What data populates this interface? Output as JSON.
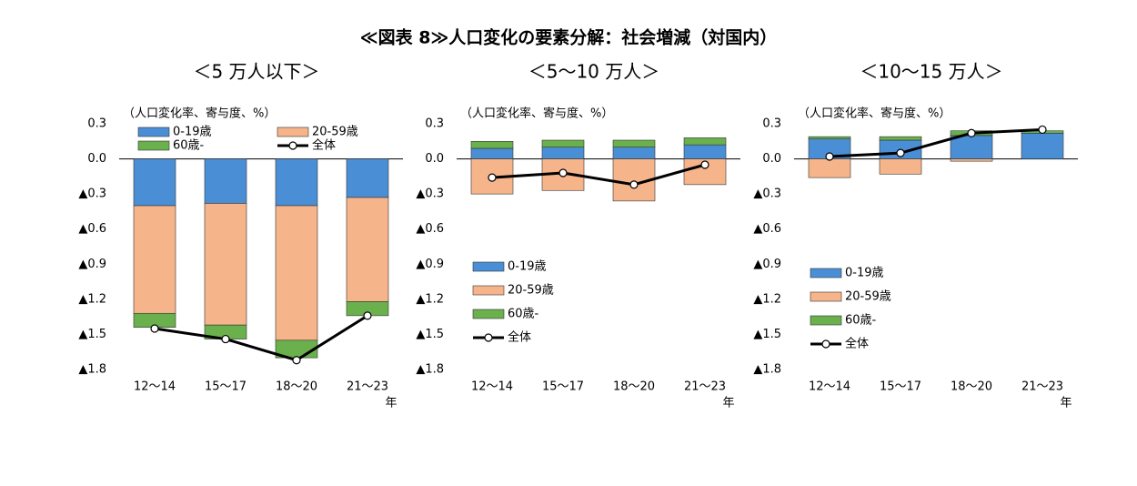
{
  "title": "≪図表 8≫人口変化の要素分解：社会増減（対国内）",
  "chart_data": [
    {
      "type": "bar",
      "stacked": true,
      "title": "＜5 万人以下＞",
      "unit_label": "（人口変化率、寄与度、%）",
      "x_label": "年",
      "categories": [
        "12～14",
        "15～17",
        "18～20",
        "21～23"
      ],
      "series": [
        {
          "name": "0-19歳",
          "color": "#4a8fd6",
          "values": [
            -0.4,
            -0.38,
            -0.4,
            -0.33
          ]
        },
        {
          "name": "20-59歳",
          "color": "#f6b48a",
          "values": [
            -0.92,
            -1.04,
            -1.15,
            -0.89
          ]
        },
        {
          "name": "60歳-",
          "color": "#6ab04c",
          "values": [
            -0.12,
            -0.12,
            -0.15,
            -0.12
          ]
        },
        {
          "name": "全体",
          "type": "line",
          "color": "#000000",
          "values": [
            -1.45,
            -1.54,
            -1.72,
            -1.34
          ]
        }
      ],
      "ylim": [
        -1.8,
        0.3
      ],
      "yticks": [
        0.3,
        {
          "value": 0,
          "label": "0.0"
        },
        {
          "value": -0.3,
          "label": "▲0.3"
        },
        {
          "value": -0.6,
          "label": "▲0.6"
        },
        {
          "value": -0.9,
          "label": "▲0.9"
        },
        {
          "value": -1.2,
          "label": "▲1.2"
        },
        {
          "value": -1.5,
          "label": "▲1.5"
        },
        {
          "value": -1.8,
          "label": "▲1.8"
        }
      ],
      "legend": "top"
    },
    {
      "type": "bar",
      "stacked": true,
      "title": "＜5～10 万人＞",
      "unit_label": "（人口変化率、寄与度、%）",
      "x_label": "年",
      "categories": [
        "12～14",
        "15～17",
        "18～20",
        "21～23"
      ],
      "series": [
        {
          "name": "0-19歳",
          "color": "#4a8fd6",
          "values": [
            0.09,
            0.1,
            0.1,
            0.12
          ]
        },
        {
          "name": "20-59歳",
          "color": "#f6b48a",
          "values": [
            -0.3,
            -0.27,
            -0.36,
            -0.22
          ]
        },
        {
          "name": "60歳-",
          "color": "#6ab04c",
          "values": [
            0.06,
            0.06,
            0.06,
            0.06
          ]
        },
        {
          "name": "全体",
          "type": "line",
          "color": "#000000",
          "values": [
            -0.16,
            -0.12,
            -0.22,
            -0.05
          ]
        }
      ],
      "ylim": [
        -1.8,
        0.3
      ],
      "yticks": [
        0.3,
        {
          "value": 0,
          "label": "0.0"
        },
        {
          "value": -0.3,
          "label": "▲0.3"
        },
        {
          "value": -0.6,
          "label": "▲0.6"
        },
        {
          "value": -0.9,
          "label": "▲0.9"
        },
        {
          "value": -1.2,
          "label": "▲1.2"
        },
        {
          "value": -1.5,
          "label": "▲1.5"
        },
        {
          "value": -1.8,
          "label": "▲1.8"
        }
      ],
      "legend": "left"
    },
    {
      "type": "bar",
      "stacked": true,
      "title": "＜10～15 万人＞",
      "unit_label": "（人口変化率、寄与度、%）",
      "x_label": "年",
      "categories": [
        "12～14",
        "15～17",
        "18～20",
        "21～23"
      ],
      "series": [
        {
          "name": "0-19歳",
          "color": "#4a8fd6",
          "values": [
            0.17,
            0.16,
            0.2,
            0.22
          ]
        },
        {
          "name": "20-59歳",
          "color": "#f6b48a",
          "values": [
            -0.16,
            -0.13,
            -0.02,
            0
          ]
        },
        {
          "name": "60歳-",
          "color": "#6ab04c",
          "values": [
            0.02,
            0.03,
            0.04,
            0.02
          ]
        },
        {
          "name": "全体",
          "type": "line",
          "color": "#000000",
          "values": [
            0.02,
            0.05,
            0.22,
            0.25
          ]
        }
      ],
      "ylim": [
        -1.8,
        0.3
      ],
      "yticks": [
        0.3,
        {
          "value": 0,
          "label": "0.0"
        },
        {
          "value": -0.3,
          "label": "▲0.3"
        },
        {
          "value": -0.6,
          "label": "▲0.6"
        },
        {
          "value": -0.9,
          "label": "▲0.9"
        },
        {
          "value": -1.2,
          "label": "▲1.2"
        },
        {
          "value": -1.5,
          "label": "▲1.5"
        },
        {
          "value": -1.8,
          "label": "▲1.8"
        }
      ],
      "legend": "left"
    }
  ]
}
